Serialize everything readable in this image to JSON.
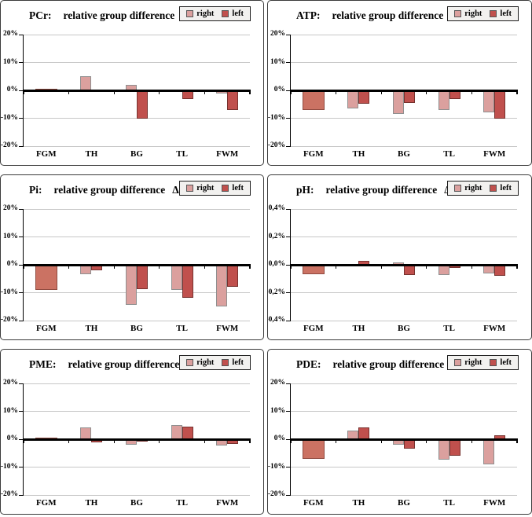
{
  "colors": {
    "right_fill": "#DBA09E",
    "right_border": "#8f8f8f",
    "left_fill": "#C0504D",
    "left_border": "#76312e",
    "merged_fill": "#CB7263",
    "merged_border": "#8f4a3f",
    "grid": "#c7c7c7",
    "axis": "#000000",
    "legend_bg": "#f2f1ef"
  },
  "chart_data": [
    {
      "type": "bar",
      "title_prefix": "PCr:",
      "title_main": "relative group difference",
      "title_suffix": "ΔCN",
      "legend": {
        "right_label": "right",
        "left_label": "left"
      },
      "categories": [
        "FGM",
        "TH",
        "BG",
        "TL",
        "FWM"
      ],
      "series": [
        {
          "name": "right",
          "values": [
            0.7,
            5.2,
            2.1,
            0,
            -1.0
          ]
        },
        {
          "name": "left",
          "values": [
            0.7,
            -0.6,
            -10.0,
            -3.0,
            -7.0
          ]
        }
      ],
      "merged": [
        true,
        false,
        false,
        false,
        false
      ],
      "ylim": [
        -20,
        20
      ],
      "yticks": [
        {
          "label": "20%",
          "value": 20
        },
        {
          "label": "10%",
          "value": 10
        },
        {
          "label": "0%",
          "value": 0
        },
        {
          "label": "-10%",
          "value": -10
        },
        {
          "label": "-20%",
          "value": -20
        }
      ]
    },
    {
      "type": "bar",
      "title_prefix": "ATP:",
      "title_main": "relative group difference",
      "title_suffix": "ΔCN",
      "legend": {
        "right_label": "right",
        "left_label": "left"
      },
      "categories": [
        "FGM",
        "TH",
        "BG",
        "TL",
        "FWM"
      ],
      "series": [
        {
          "name": "right",
          "values": [
            -7.0,
            -6.5,
            -8.5,
            -7.0,
            -8.0
          ]
        },
        {
          "name": "left",
          "values": [
            -7.0,
            -4.8,
            -4.5,
            -3.2,
            -10.0
          ]
        }
      ],
      "merged": [
        true,
        false,
        false,
        false,
        false
      ],
      "ylim": [
        -20,
        20
      ],
      "yticks": [
        {
          "label": "20%",
          "value": 20
        },
        {
          "label": "10%",
          "value": 10
        },
        {
          "label": "0%",
          "value": 0
        },
        {
          "label": "-10%",
          "value": -10
        },
        {
          "label": "-20%",
          "value": -20
        }
      ]
    },
    {
      "type": "bar",
      "title_prefix": "Pi:",
      "title_main": "relative group difference",
      "title_suffix": "ΔCN",
      "legend": {
        "right_label": "right",
        "left_label": "left"
      },
      "categories": [
        "FGM",
        "TH",
        "BG",
        "TL",
        "FWM"
      ],
      "series": [
        {
          "name": "right",
          "values": [
            -9.0,
            -3.4,
            -14.5,
            -9.0,
            -15.0
          ]
        },
        {
          "name": "left",
          "values": [
            -9.0,
            -2.0,
            -8.7,
            -11.7,
            -8.0
          ]
        }
      ],
      "merged": [
        true,
        false,
        false,
        false,
        false
      ],
      "ylim": [
        -20,
        20
      ],
      "yticks": [
        {
          "label": "20%",
          "value": 20
        },
        {
          "label": "10%",
          "value": 10
        },
        {
          "label": "0%",
          "value": 0
        },
        {
          "label": "-10%",
          "value": -10
        },
        {
          "label": "-20%",
          "value": -20
        }
      ]
    },
    {
      "type": "bar",
      "title_prefix": "pH:",
      "title_main": "relative group difference",
      "title_suffix": "ΔCN",
      "legend": {
        "right_label": "right",
        "left_label": "left"
      },
      "categories": [
        "FGM",
        "TH",
        "BG",
        "TL",
        "FWM"
      ],
      "series": [
        {
          "name": "right",
          "values": [
            -0.07,
            0,
            0.015,
            -0.075,
            -0.06
          ]
        },
        {
          "name": "left",
          "values": [
            -0.07,
            0.03,
            -0.075,
            -0.025,
            -0.08
          ]
        }
      ],
      "merged": [
        true,
        false,
        false,
        false,
        false
      ],
      "ylim": [
        -0.4,
        0.4
      ],
      "yticks": [
        {
          "label": "0,4%",
          "value": 0.4
        },
        {
          "label": "0,2%",
          "value": 0.2
        },
        {
          "label": "0,0%",
          "value": 0
        },
        {
          "label": "-0,2%",
          "value": -0.2
        },
        {
          "label": "-0,4%",
          "value": -0.4
        }
      ]
    },
    {
      "type": "bar",
      "title_prefix": "PME:",
      "title_main": "relative group difference",
      "title_suffix": "ΔCN",
      "legend": {
        "right_label": "right",
        "left_label": "left"
      },
      "categories": [
        "FGM",
        "TH",
        "BG",
        "TL",
        "FWM"
      ],
      "series": [
        {
          "name": "right",
          "values": [
            0.5,
            4.3,
            -2.1,
            5.1,
            -2.2
          ]
        },
        {
          "name": "left",
          "values": [
            0.5,
            -1.0,
            -0.8,
            4.5,
            -1.8
          ]
        }
      ],
      "merged": [
        true,
        false,
        false,
        false,
        false
      ],
      "ylim": [
        -20,
        20
      ],
      "yticks": [
        {
          "label": "20%",
          "value": 20
        },
        {
          "label": "10%",
          "value": 10
        },
        {
          "label": "0%",
          "value": 0
        },
        {
          "label": "-10%",
          "value": -10
        },
        {
          "label": "-20%",
          "value": -20
        }
      ]
    },
    {
      "type": "bar",
      "title_prefix": "PDE:",
      "title_main": "relative group difference",
      "title_suffix": "ΔCN",
      "legend": {
        "right_label": "right",
        "left_label": "left"
      },
      "categories": [
        "FGM",
        "TH",
        "BG",
        "TL",
        "FWM"
      ],
      "series": [
        {
          "name": "right",
          "values": [
            -7.0,
            3.0,
            -2.0,
            -7.3,
            -9.0
          ]
        },
        {
          "name": "left",
          "values": [
            -7.0,
            4.2,
            -3.5,
            -6.0,
            1.5
          ]
        }
      ],
      "merged": [
        true,
        false,
        false,
        false,
        false
      ],
      "ylim": [
        -20,
        20
      ],
      "yticks": [
        {
          "label": "20%",
          "value": 20
        },
        {
          "label": "10%",
          "value": 10
        },
        {
          "label": "0%",
          "value": 0
        },
        {
          "label": "-10%",
          "value": -10
        },
        {
          "label": "-20%",
          "value": -20
        }
      ]
    }
  ]
}
